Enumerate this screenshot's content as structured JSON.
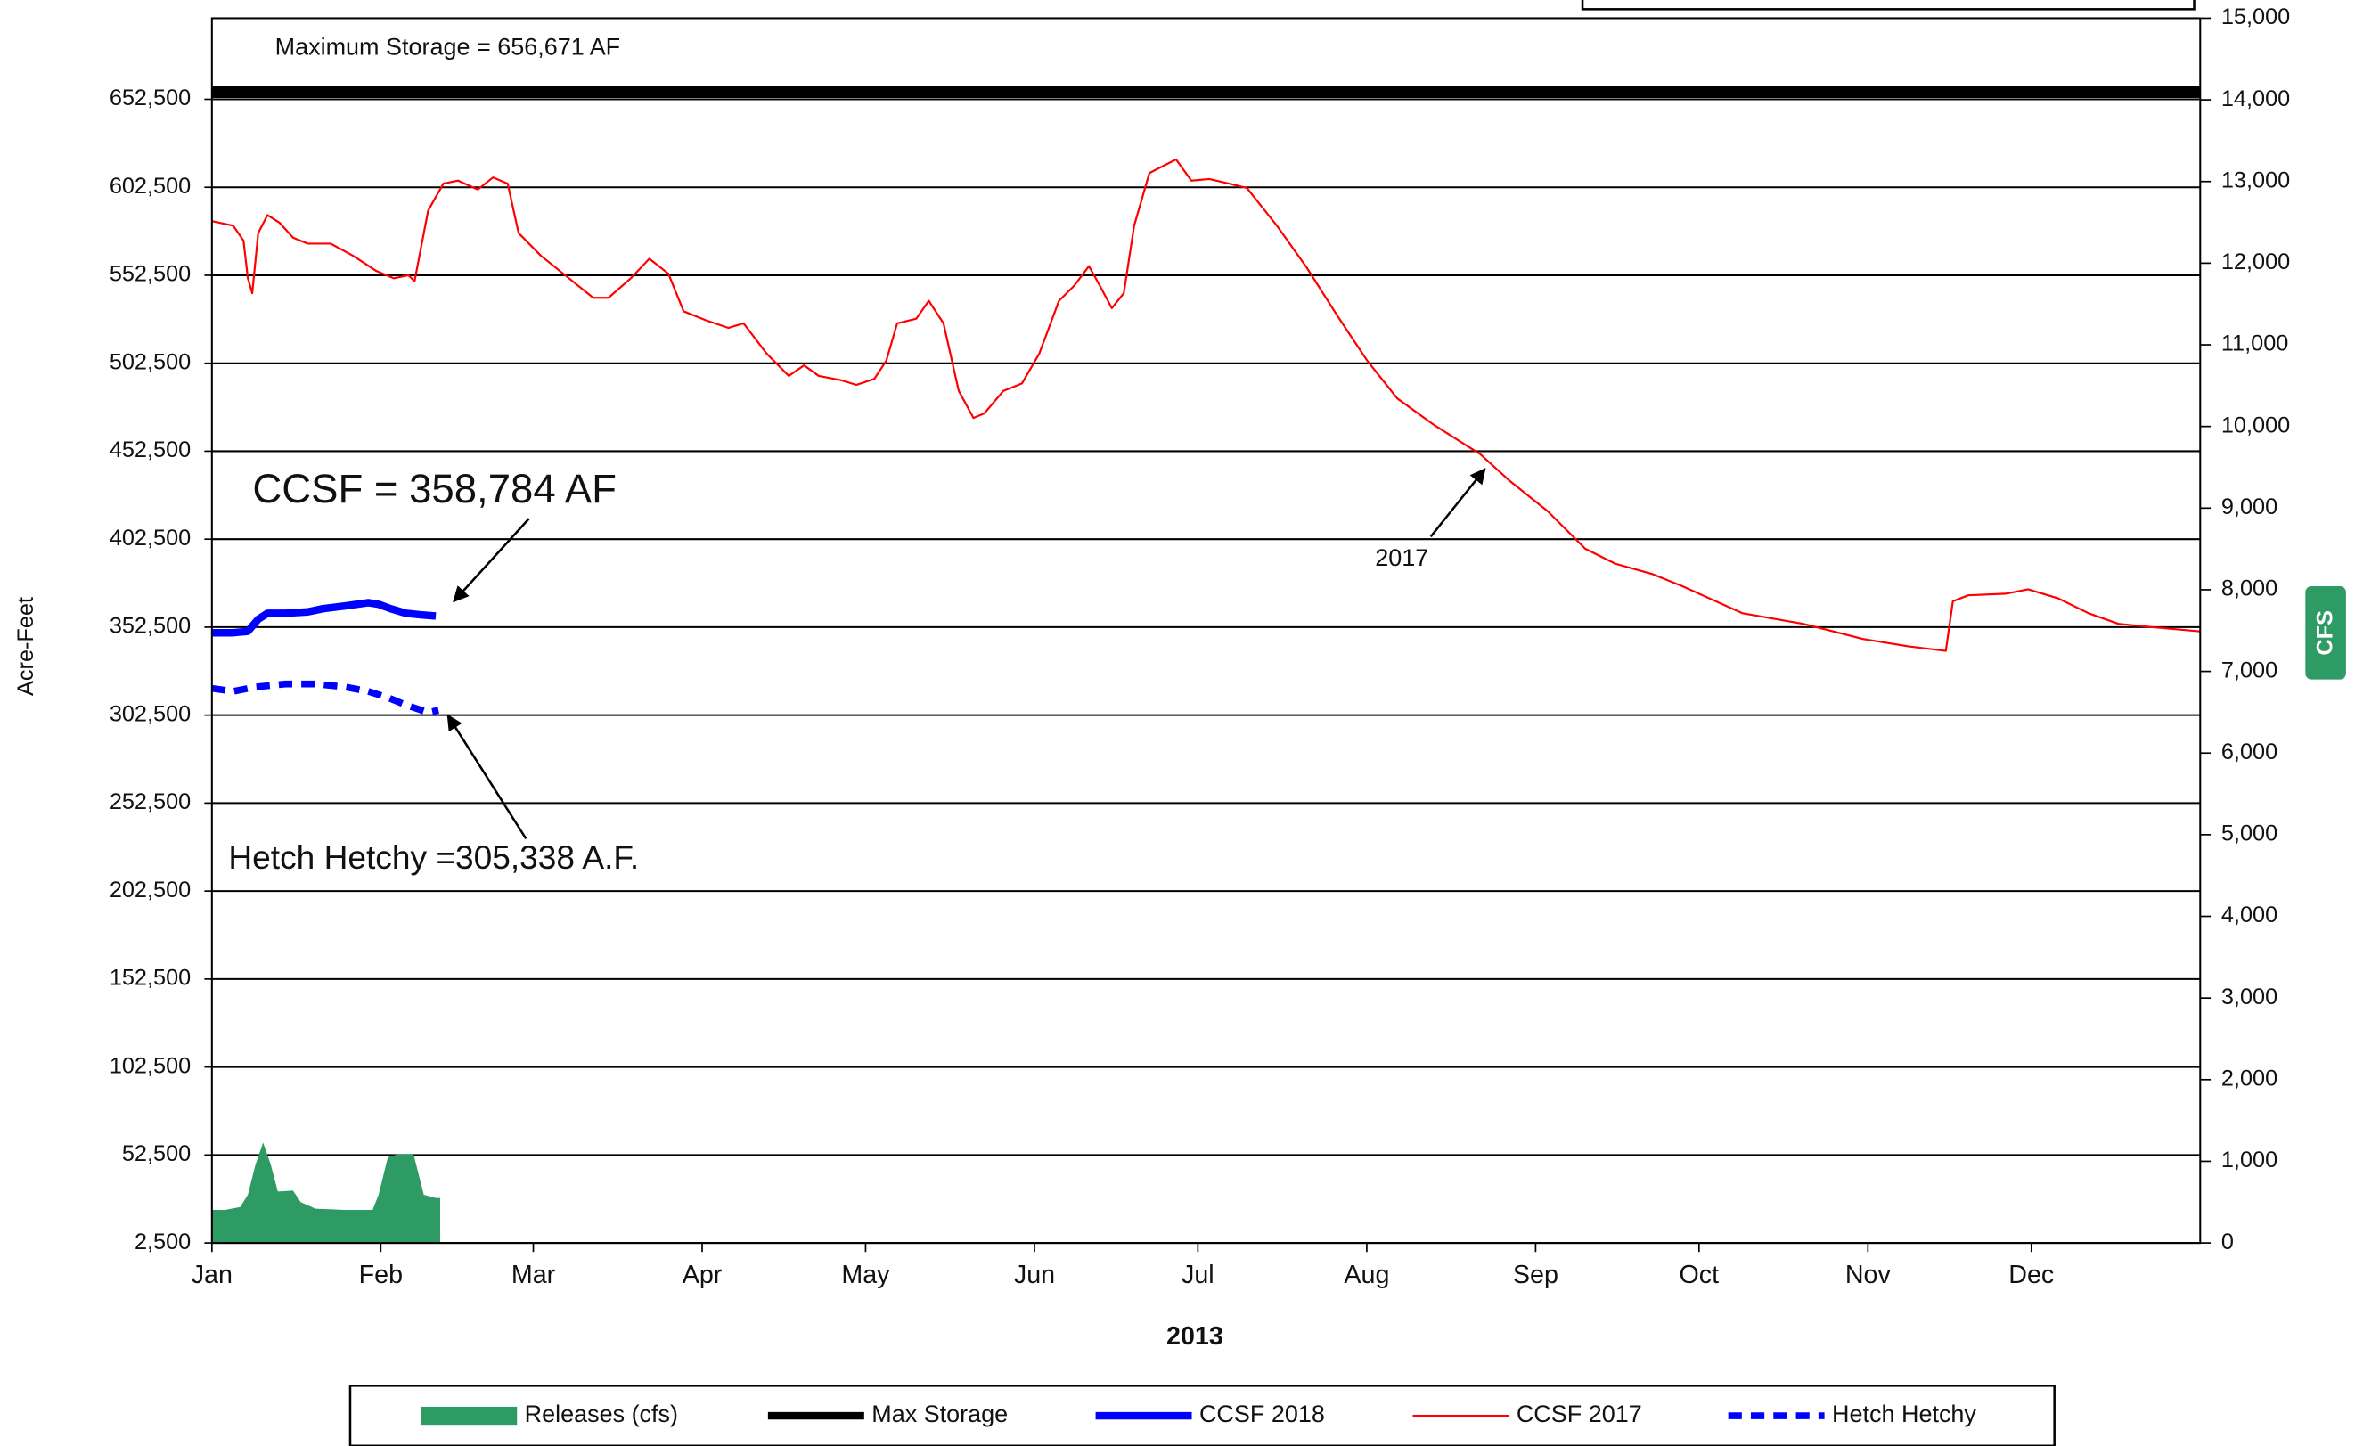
{
  "chart_data": {
    "type": "line",
    "x_label": "2013",
    "y_label": "Acre-Feet",
    "y2_label": "CFS",
    "xlim": [
      0,
      365
    ],
    "xticks": [
      {
        "value": 0,
        "label": "Jan"
      },
      {
        "value": 31,
        "label": "Feb"
      },
      {
        "value": 59,
        "label": "Mar"
      },
      {
        "value": 90,
        "label": "Apr"
      },
      {
        "value": 120,
        "label": "May"
      },
      {
        "value": 151,
        "label": "Jun"
      },
      {
        "value": 181,
        "label": "Jul"
      },
      {
        "value": 212,
        "label": "Aug"
      },
      {
        "value": 243,
        "label": "Sep"
      },
      {
        "value": 273,
        "label": "Oct"
      },
      {
        "value": 304,
        "label": "Nov"
      },
      {
        "value": 334,
        "label": "Dec"
      }
    ],
    "ylim": [
      2500,
      698600
    ],
    "yticks": [
      {
        "value": 2500,
        "label": "2,500"
      },
      {
        "value": 52500,
        "label": "52,500"
      },
      {
        "value": 102500,
        "label": "102,500"
      },
      {
        "value": 152500,
        "label": "152,500"
      },
      {
        "value": 202500,
        "label": "202,500"
      },
      {
        "value": 252500,
        "label": "252,500"
      },
      {
        "value": 302500,
        "label": "302,500"
      },
      {
        "value": 352500,
        "label": "352,500"
      },
      {
        "value": 402500,
        "label": "402,500"
      },
      {
        "value": 452500,
        "label": "452,500"
      },
      {
        "value": 502500,
        "label": "502,500"
      },
      {
        "value": 552500,
        "label": "552,500"
      },
      {
        "value": 602500,
        "label": "602,500"
      },
      {
        "value": 652500,
        "label": "652,500"
      }
    ],
    "y2lim": [
      0,
      15000
    ],
    "y2ticks": [
      0,
      {
        "value": 1000,
        "label": "1,000"
      },
      {
        "value": 2000,
        "label": "2,000"
      },
      {
        "value": 3000,
        "label": "3,000"
      },
      {
        "value": 4000,
        "label": "4,000"
      },
      {
        "value": 5000,
        "label": "5,000"
      },
      {
        "value": 6000,
        "label": "6,000"
      },
      {
        "value": 7000,
        "label": "7,000"
      },
      {
        "value": 8000,
        "label": "8,000"
      },
      {
        "value": 9000,
        "label": "9,000"
      },
      {
        "value": 10000,
        "label": "10,000"
      },
      {
        "value": 11000,
        "label": "11,000"
      },
      {
        "value": 12000,
        "label": "12,000"
      },
      {
        "value": 13000,
        "label": "13,000"
      },
      {
        "value": 14000,
        "label": "14,000"
      },
      {
        "value": 15000,
        "label": "15,000"
      }
    ],
    "grid": true,
    "annotations": [
      "Maximum Storage = 656,671 AF",
      "CCSF = 358,784 AF",
      "Hetch Hetchy =305,338 A.F.",
      "2017"
    ],
    "series": [
      {
        "name": "Releases (cfs)",
        "color": "#2e9a64",
        "kind": "area",
        "axis": "y2",
        "x": [
          0,
          2.5,
          5.2,
          6.6,
          8.0,
          9.4,
          10.8,
          12.1,
          14.9,
          16.3,
          19.0,
          24.5,
          29.5,
          30.6,
          32.3,
          34.2,
          37.0,
          38.9,
          41.1,
          41.9
        ],
        "values": [
          405,
          405,
          440,
          590,
          960,
          1230,
          960,
          630,
          640,
          500,
          420,
          405,
          405,
          590,
          1050,
          1090,
          1090,
          590,
          550,
          550
        ]
      },
      {
        "name": "Max Storage",
        "color": "#000000",
        "x": [
          0,
          365
        ],
        "values": [
          656671,
          656671
        ]
      },
      {
        "name": "CCSF 2018",
        "color": "#0000ff",
        "x": [
          0,
          3.9,
          6.6,
          8.5,
          10.2,
          13.5,
          17.6,
          20.4,
          24.5,
          28.7,
          30.6,
          32.8,
          35.6,
          38.3,
          41.1
        ],
        "values": [
          349300,
          349300,
          350100,
          357000,
          360400,
          360400,
          361200,
          363000,
          364600,
          366400,
          365500,
          363000,
          360400,
          359500,
          358800
        ]
      },
      {
        "name": "CCSF 2017",
        "color": "#ff0000",
        "x": [
          0,
          3.9,
          5.8,
          6.6,
          7.4,
          8.5,
          10.2,
          12.4,
          14.9,
          17.6,
          21.8,
          25.9,
          30.1,
          33.4,
          36.1,
          37.2,
          39.7,
          42.5,
          45.2,
          48.8,
          51.6,
          54.3,
          56.3,
          60.4,
          64.5,
          70.0,
          72.8,
          76.9,
          80.3,
          83.8,
          86.6,
          90.7,
          94.8,
          97.6,
          101.8,
          105.9,
          108.7,
          111.4,
          115.6,
          118.3,
          121.6,
          123.8,
          125.8,
          129.3,
          131.6,
          134.3,
          137.1,
          139.8,
          141.8,
          145.3,
          148.7,
          151.9,
          155.5,
          158.3,
          161.0,
          163.0,
          165.2,
          167.4,
          169.3,
          172.1,
          174.8,
          177.0,
          179.8,
          183.1,
          186.7,
          190.0,
          195.5,
          201.0,
          206.6,
          212.1,
          217.6,
          224.5,
          232.8,
          238.3,
          245.2,
          252.1,
          257.6,
          264.5,
          270.0,
          281.0,
          292.1,
          303.1,
          311.4,
          318.3,
          319.6,
          322.4,
          329.3,
          333.4,
          338.9,
          344.5,
          350.0,
          355.5,
          365
        ],
        "values": [
          583300,
          580700,
          572200,
          550800,
          542300,
          576500,
          586700,
          582400,
          573900,
          570500,
          570500,
          563600,
          555100,
          550800,
          552500,
          549100,
          589300,
          604600,
          606300,
          601200,
          608100,
          604600,
          576500,
          563600,
          553400,
          539700,
          539700,
          550800,
          561900,
          553400,
          532000,
          526900,
          522600,
          525200,
          508100,
          495300,
          501300,
          495300,
          492800,
          490200,
          493600,
          503900,
          525200,
          527800,
          538000,
          525200,
          486800,
          471400,
          474000,
          486800,
          491000,
          508100,
          538000,
          546600,
          557700,
          546600,
          533800,
          542300,
          580700,
          610600,
          614900,
          618300,
          606300,
          607200,
          604600,
          602100,
          580700,
          556800,
          529500,
          503900,
          482500,
          467100,
          450900,
          435500,
          418400,
          397100,
          388600,
          382600,
          375700,
          360400,
          354400,
          345800,
          341600,
          339000,
          367200,
          370600,
          371500,
          374000,
          368900,
          360400,
          354400,
          352700,
          350100
        ]
      },
      {
        "name": "Hetch Hetchy",
        "color": "#0000ff",
        "x": [
          0,
          3.9,
          8.0,
          13.5,
          19.0,
          24.5,
          28.7,
          32.3,
          35.6,
          39.7,
          41.6
        ],
        "values": [
          317700,
          316000,
          318500,
          320200,
          320200,
          318500,
          316000,
          312500,
          308300,
          304000,
          305300
        ]
      }
    ]
  }
}
